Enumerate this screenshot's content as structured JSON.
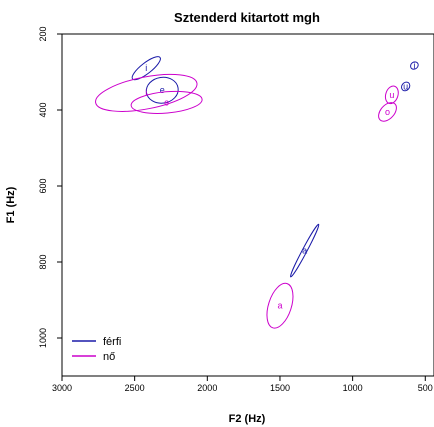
{
  "chart_data": {
    "type": "scatter",
    "title": "Sztenderd kitartott mgh",
    "xlabel": "F2 (Hz)",
    "ylabel": "F1 (Hz)",
    "x_reversed": true,
    "y_reversed": true,
    "xlim": [
      3000,
      440
    ],
    "ylim": [
      200,
      1100
    ],
    "x_ticks": [
      3000,
      2500,
      2000,
      1500,
      1000,
      500
    ],
    "y_ticks": [
      200,
      400,
      600,
      800,
      1000
    ],
    "legend": {
      "position": "bottom-left",
      "entries": [
        {
          "label": "férfi",
          "color": "#1a1aa8"
        },
        {
          "label": "nő",
          "color": "#cc00cc"
        }
      ]
    },
    "series": [
      {
        "name": "férfi",
        "color": "#1a1aa8",
        "ellipses": [
          {
            "label": "i",
            "cx": 2420,
            "cy": 290,
            "rx": 120,
            "ry": 14,
            "angle": -38
          },
          {
            "label": "e",
            "cx": 2310,
            "cy": 348,
            "rx": 110,
            "ry": 34,
            "angle": -8
          },
          {
            "label": "a",
            "cx": 1330,
            "cy": 770,
            "rx": 205,
            "ry": 6,
            "angle": -62
          },
          {
            "label": "i",
            "cx": 575,
            "cy": 283,
            "rx": 28,
            "ry": 9,
            "angle": -40
          },
          {
            "label": "u",
            "cx": 635,
            "cy": 338,
            "rx": 32,
            "ry": 10,
            "angle": -52
          }
        ]
      },
      {
        "name": "nő",
        "color": "#cc00cc",
        "ellipses": [
          {
            "label": "i",
            "cx": 2420,
            "cy": 355,
            "rx": 355,
            "ry": 42,
            "angle": -11
          },
          {
            "label": "e",
            "cx": 2280,
            "cy": 380,
            "rx": 245,
            "ry": 28,
            "angle": -5
          },
          {
            "label": "a",
            "cx": 1500,
            "cy": 915,
            "rx": 160,
            "ry": 30,
            "angle": -72
          },
          {
            "label": "u",
            "cx": 730,
            "cy": 360,
            "rx": 62,
            "ry": 16,
            "angle": -72
          },
          {
            "label": "o",
            "cx": 760,
            "cy": 405,
            "rx": 75,
            "ry": 18,
            "angle": -48
          }
        ]
      }
    ]
  }
}
